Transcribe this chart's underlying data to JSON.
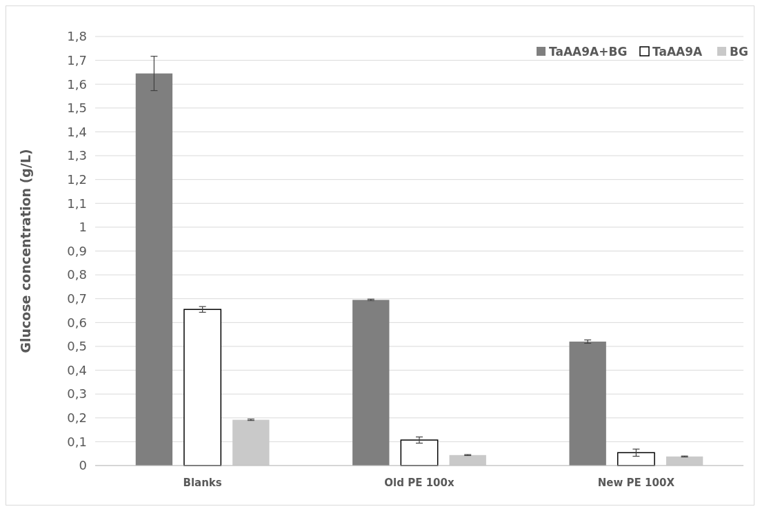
{
  "chart_data": {
    "type": "bar",
    "ylabel": "Glucose concentration (g/L)",
    "categories": [
      "Blanks",
      "Old PE 100x",
      "New PE 100X"
    ],
    "series": [
      {
        "name": "TaAA9A+BG",
        "color": "#7f7f7f",
        "values": [
          1.645,
          0.695,
          0.52
        ],
        "errors": [
          0.072,
          0.003,
          0.007
        ]
      },
      {
        "name": "TaAA9A",
        "color": "#ffffff",
        "values": [
          0.655,
          0.107,
          0.054
        ],
        "errors": [
          0.012,
          0.013,
          0.015
        ]
      },
      {
        "name": "BG",
        "color": "#c9c9c9",
        "values": [
          0.192,
          0.044,
          0.038
        ],
        "errors": [
          0.003,
          0.002,
          0.002
        ]
      }
    ],
    "ylim": [
      0,
      1.8
    ],
    "yticks": [
      {
        "value": 0,
        "label": "0"
      },
      {
        "value": 0.1,
        "label": "0,1"
      },
      {
        "value": 0.2,
        "label": "0,2"
      },
      {
        "value": 0.3,
        "label": "0,3"
      },
      {
        "value": 0.4,
        "label": "0,4"
      },
      {
        "value": 0.5,
        "label": "0,5"
      },
      {
        "value": 0.6,
        "label": "0,6"
      },
      {
        "value": 0.7,
        "label": "0,7"
      },
      {
        "value": 0.8,
        "label": "0,8"
      },
      {
        "value": 0.9,
        "label": "0,9"
      },
      {
        "value": 1,
        "label": "1"
      },
      {
        "value": 1.1,
        "label": "1,1"
      },
      {
        "value": 1.2,
        "label": "1,2"
      },
      {
        "value": 1.3,
        "label": "1,3"
      },
      {
        "value": 1.4,
        "label": "1,4"
      },
      {
        "value": 1.5,
        "label": "1,5"
      },
      {
        "value": 1.6,
        "label": "1,6"
      },
      {
        "value": 1.7,
        "label": "1,7"
      },
      {
        "value": 1.8,
        "label": "1,8"
      }
    ],
    "grid": "y",
    "legend": "top right"
  }
}
